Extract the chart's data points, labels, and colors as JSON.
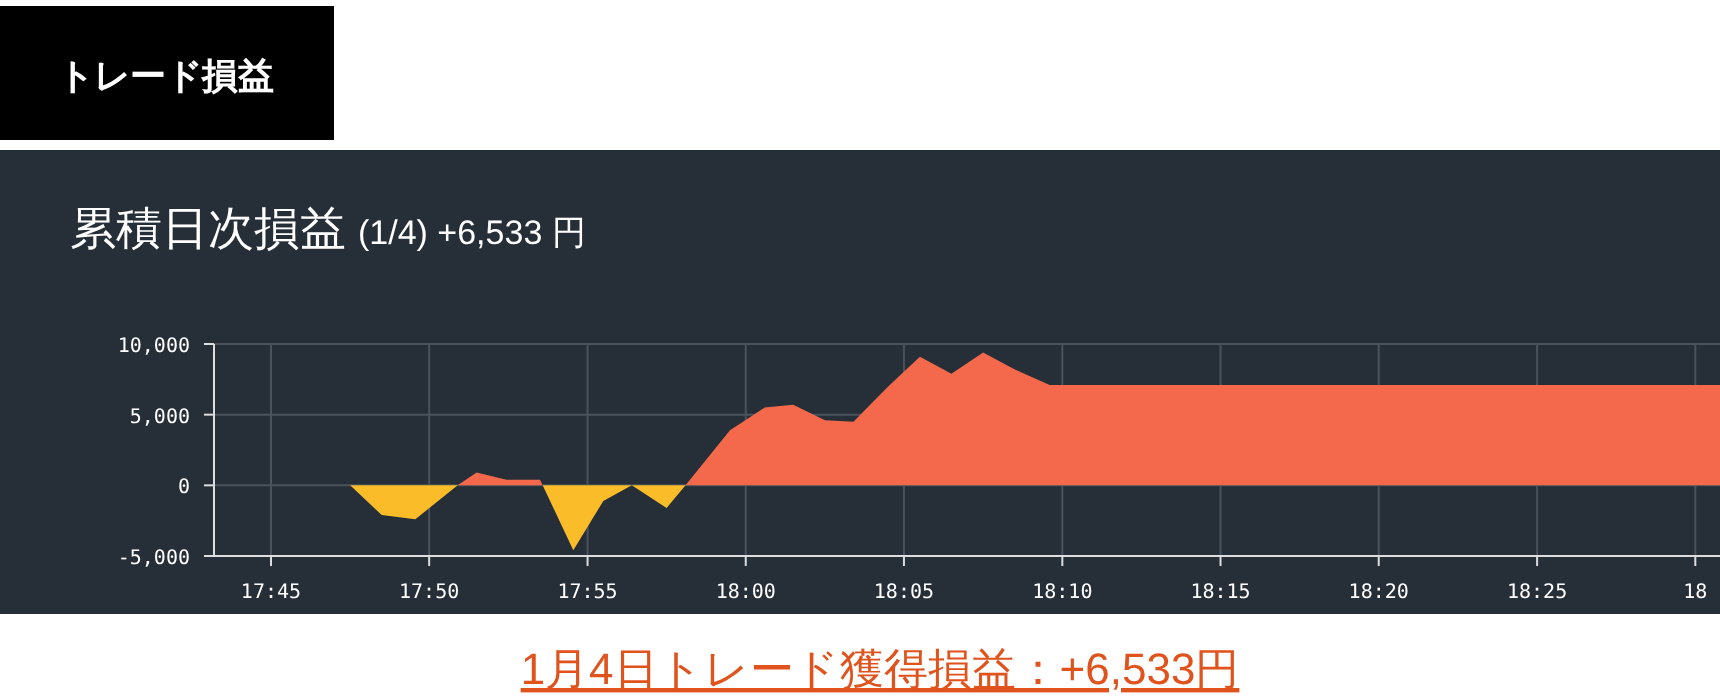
{
  "chart_data": {
    "type": "area",
    "title": "累積日次損益",
    "subtitle": "(1/4) +6,533 円",
    "annotations": [
      "トレード損益",
      "1月4日トレード獲得損益：+6,533円"
    ],
    "x": [
      17.72,
      17.7917,
      17.8083,
      17.826,
      17.8483,
      17.8583,
      17.874,
      17.8917,
      17.9092,
      17.925,
      17.94,
      17.9583,
      17.9683,
      17.9917,
      18.01,
      18.025,
      18.0417,
      18.0567,
      18.075,
      18.0917,
      18.1083,
      18.125,
      18.1417,
      18.16,
      18.513
    ],
    "series": [
      {
        "values": [
          0,
          0,
          -2100,
          -2400,
          0,
          900,
          400,
          400,
          -4600,
          -1100,
          0,
          -1600,
          0,
          3900,
          5500,
          5700,
          4600,
          4500,
          7000,
          9100,
          7900,
          9400,
          8200,
          7100,
          7100
        ],
        "colors": [
          "#f4694c",
          "#f4694c",
          "#fbbc2a",
          "#fbbc2a",
          "#fbbc2a",
          "#f4694c",
          "#f4694c",
          "#f4694c",
          "#fbbc2a",
          "#fbbc2a",
          "#fbbc2a",
          "#fbbc2a",
          "#fbbc2a",
          "#f4694c",
          "#f4694c",
          "#f4694c",
          "#f4694c",
          "#f4694c",
          "#f4694c",
          "#f4694c",
          "#f4694c",
          "#f4694c",
          "#f4694c",
          "#f4694c",
          "#f4694c"
        ]
      }
    ],
    "xlim": [
      17.72,
      18.513
    ],
    "ylim": [
      -5000,
      10000
    ],
    "xticks": [
      {
        "value": 17.75,
        "label": "17:45"
      },
      {
        "value": 17.8333,
        "label": "17:50"
      },
      {
        "value": 17.9167,
        "label": "17:55"
      },
      {
        "value": 18.0,
        "label": "18:00"
      },
      {
        "value": 18.0833,
        "label": "18:05"
      },
      {
        "value": 18.1667,
        "label": "18:10"
      },
      {
        "value": 18.25,
        "label": "18:15"
      },
      {
        "value": 18.3333,
        "label": "18:20"
      },
      {
        "value": 18.4167,
        "label": "18:25"
      },
      {
        "value": 18.5,
        "label": "18"
      }
    ],
    "yticks": [
      {
        "value": -5000,
        "label": "-5,000"
      },
      {
        "value": 0,
        "label": "0"
      },
      {
        "value": 5000,
        "label": "5,000"
      },
      {
        "value": 10000,
        "label": "10,000"
      }
    ],
    "grid": true
  }
}
